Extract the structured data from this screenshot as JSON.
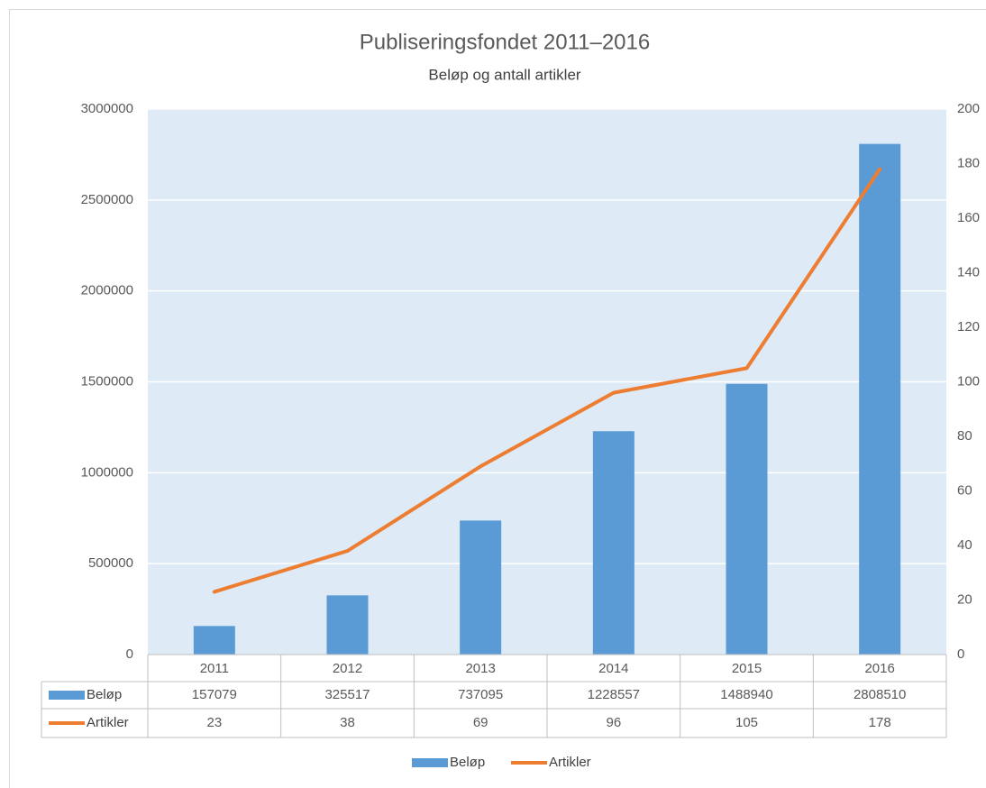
{
  "chart_data": {
    "type": "bar",
    "title": "Publiseringsfondet 2011–2016",
    "subtitle": "Beløp og antall artikler",
    "categories": [
      "2011",
      "2012",
      "2013",
      "2014",
      "2015",
      "2016"
    ],
    "series": [
      {
        "name": "Beløp",
        "color": "#5b9bd5",
        "values": [
          157079,
          325517,
          737095,
          1228557,
          1488940,
          2808510
        ]
      },
      {
        "name": "Artikler",
        "color": "#ed7d31",
        "type": "line",
        "axis": "y2",
        "values": [
          23,
          38,
          69,
          96,
          105,
          178
        ]
      }
    ],
    "ylim": [
      0,
      3000000
    ],
    "yticks": [
      0,
      500000,
      1000000,
      1500000,
      2000000,
      2500000,
      3000000
    ],
    "y2lim": [
      0,
      200
    ],
    "y2ticks": [
      0,
      20,
      40,
      60,
      80,
      100,
      120,
      140,
      160,
      180,
      200
    ],
    "grid": true,
    "data_table": true,
    "legend": "bottom"
  }
}
